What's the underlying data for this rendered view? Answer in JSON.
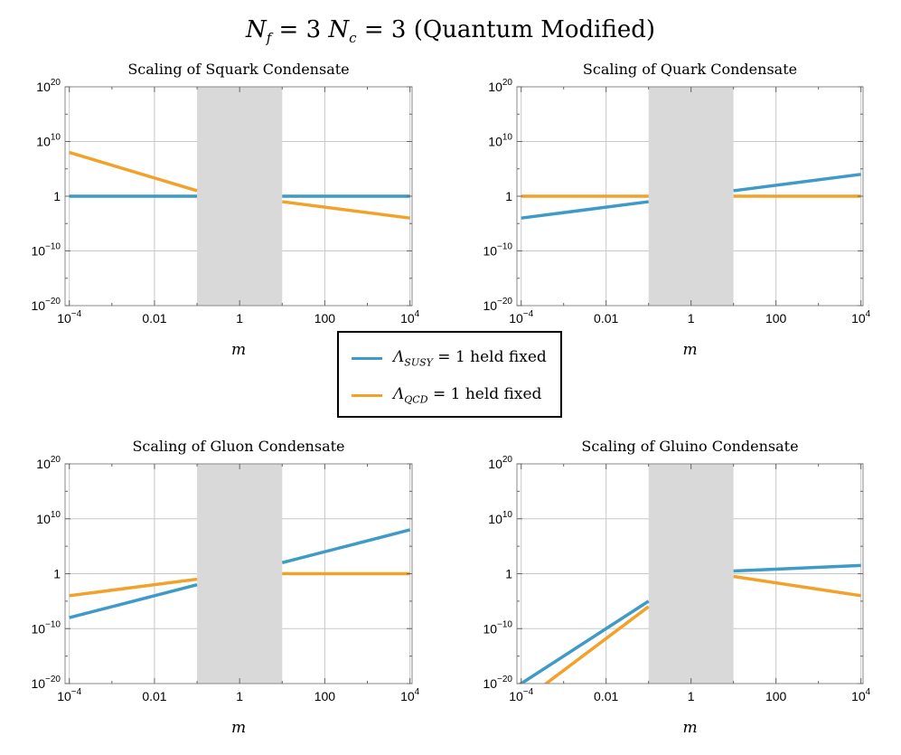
{
  "title": {
    "n_f": "N",
    "f_sub": "f",
    "eq1": " = 3 ",
    "n_c": "N",
    "c_sub": "c",
    "eq2": " = 3 ",
    "suffix": "(Quantum Modified)"
  },
  "legend": {
    "susy": {
      "lambda": "Λ",
      "sub": "SUSY",
      "rest": " = 1 held fixed",
      "color": "#3e9ac7"
    },
    "qcd": {
      "lambda": "Λ",
      "sub": "QCD",
      "rest": " = 1 held fixed",
      "color": "#f2a22b"
    }
  },
  "colors": {
    "susy": "#3e9ac7",
    "qcd": "#f2a22b",
    "shade": "#d9d9d9",
    "grid": "#c8c8c8"
  },
  "chart_data": [
    {
      "type": "line",
      "title": "Scaling of Squark Condensate",
      "xlabel": "m",
      "xscale": "log",
      "yscale": "log",
      "xlim_log10": [
        -4.1,
        4.05
      ],
      "ylim_log10": [
        -20,
        20
      ],
      "x_ticks": [
        {
          "v": -4,
          "base": "10",
          "exp": "−4"
        },
        {
          "v": -2,
          "base": "0.01",
          "exp": ""
        },
        {
          "v": 0,
          "base": "1",
          "exp": ""
        },
        {
          "v": 2,
          "base": "100",
          "exp": ""
        },
        {
          "v": 4,
          "base": "10",
          "exp": "4"
        }
      ],
      "y_ticks": [
        {
          "v": 20,
          "base": "10",
          "exp": "20"
        },
        {
          "v": 10,
          "base": "10",
          "exp": "10"
        },
        {
          "v": 0,
          "base": "1",
          "exp": ""
        },
        {
          "v": -10,
          "base": "10",
          "exp": "−10"
        },
        {
          "v": -20,
          "base": "10",
          "exp": "−20"
        }
      ],
      "shaded_region_log10": [
        -1,
        1
      ],
      "series": [
        {
          "name": "SUSY",
          "segments": [
            [
              [
                -4,
                0
              ],
              [
                -1,
                0
              ]
            ],
            [
              [
                1,
                0
              ],
              [
                4,
                0
              ]
            ]
          ]
        },
        {
          "name": "QCD",
          "segments": [
            [
              [
                -4,
                8
              ],
              [
                -1,
                1
              ]
            ],
            [
              [
                1,
                -1
              ],
              [
                4,
                -4
              ]
            ]
          ]
        }
      ]
    },
    {
      "type": "line",
      "title": "Scaling of Quark Condensate",
      "xlabel": "m",
      "xscale": "log",
      "yscale": "log",
      "xlim_log10": [
        -4.1,
        4.05
      ],
      "ylim_log10": [
        -20,
        20
      ],
      "x_ticks": [
        {
          "v": -4,
          "base": "10",
          "exp": "−4"
        },
        {
          "v": -2,
          "base": "0.01",
          "exp": ""
        },
        {
          "v": 0,
          "base": "1",
          "exp": ""
        },
        {
          "v": 2,
          "base": "100",
          "exp": ""
        },
        {
          "v": 4,
          "base": "10",
          "exp": "4"
        }
      ],
      "y_ticks": [
        {
          "v": 20,
          "base": "10",
          "exp": "20"
        },
        {
          "v": 10,
          "base": "10",
          "exp": "10"
        },
        {
          "v": 0,
          "base": "1",
          "exp": ""
        },
        {
          "v": -10,
          "base": "10",
          "exp": "−10"
        },
        {
          "v": -20,
          "base": "10",
          "exp": "−20"
        }
      ],
      "shaded_region_log10": [
        -1,
        1
      ],
      "series": [
        {
          "name": "SUSY",
          "segments": [
            [
              [
                -4,
                -4
              ],
              [
                -1,
                -1
              ]
            ],
            [
              [
                1,
                1
              ],
              [
                4,
                4
              ]
            ]
          ]
        },
        {
          "name": "QCD",
          "segments": [
            [
              [
                -4,
                0
              ],
              [
                -1,
                0
              ]
            ],
            [
              [
                1,
                0
              ],
              [
                4,
                0
              ]
            ]
          ]
        }
      ]
    },
    {
      "type": "line",
      "title": "Scaling of Gluon Condensate",
      "xlabel": "m",
      "xscale": "log",
      "yscale": "log",
      "xlim_log10": [
        -4.1,
        4.05
      ],
      "ylim_log10": [
        -20,
        20
      ],
      "x_ticks": [
        {
          "v": -4,
          "base": "10",
          "exp": "−4"
        },
        {
          "v": -2,
          "base": "0.01",
          "exp": ""
        },
        {
          "v": 0,
          "base": "1",
          "exp": ""
        },
        {
          "v": 2,
          "base": "100",
          "exp": ""
        },
        {
          "v": 4,
          "base": "10",
          "exp": "4"
        }
      ],
      "y_ticks": [
        {
          "v": 20,
          "base": "10",
          "exp": "20"
        },
        {
          "v": 10,
          "base": "10",
          "exp": "10"
        },
        {
          "v": 0,
          "base": "1",
          "exp": ""
        },
        {
          "v": -10,
          "base": "10",
          "exp": "−10"
        },
        {
          "v": -20,
          "base": "10",
          "exp": "−20"
        }
      ],
      "shaded_region_log10": [
        -1,
        1
      ],
      "series": [
        {
          "name": "SUSY",
          "segments": [
            [
              [
                -4,
                -8
              ],
              [
                -1,
                -2
              ]
            ],
            [
              [
                1,
                2
              ],
              [
                4,
                8
              ]
            ]
          ]
        },
        {
          "name": "QCD",
          "segments": [
            [
              [
                -4,
                -4
              ],
              [
                -1,
                -1
              ]
            ],
            [
              [
                1,
                0
              ],
              [
                4,
                0
              ]
            ]
          ]
        }
      ]
    },
    {
      "type": "line",
      "title": "Scaling of Gluino Condensate",
      "xlabel": "m",
      "xscale": "log",
      "yscale": "log",
      "xlim_log10": [
        -4.1,
        4.05
      ],
      "ylim_log10": [
        -20,
        20
      ],
      "x_ticks": [
        {
          "v": -4,
          "base": "10",
          "exp": "−4"
        },
        {
          "v": -2,
          "base": "0.01",
          "exp": ""
        },
        {
          "v": 0,
          "base": "1",
          "exp": ""
        },
        {
          "v": 2,
          "base": "100",
          "exp": ""
        },
        {
          "v": 4,
          "base": "10",
          "exp": "4"
        }
      ],
      "y_ticks": [
        {
          "v": 20,
          "base": "10",
          "exp": "20"
        },
        {
          "v": 10,
          "base": "10",
          "exp": "10"
        },
        {
          "v": 0,
          "base": "1",
          "exp": ""
        },
        {
          "v": -10,
          "base": "10",
          "exp": "−10"
        },
        {
          "v": -20,
          "base": "10",
          "exp": "−20"
        }
      ],
      "shaded_region_log10": [
        -1,
        1
      ],
      "series": [
        {
          "name": "SUSY",
          "segments": [
            [
              [
                -4.1,
                -20.5
              ],
              [
                -1,
                -5
              ]
            ],
            [
              [
                1,
                0.5
              ],
              [
                4,
                1.5
              ]
            ]
          ]
        },
        {
          "name": "QCD",
          "segments": [
            [
              [
                -3.5,
                -20.5
              ],
              [
                -1,
                -6
              ]
            ],
            [
              [
                1,
                -0.5
              ],
              [
                4,
                -4
              ]
            ]
          ]
        }
      ]
    }
  ]
}
